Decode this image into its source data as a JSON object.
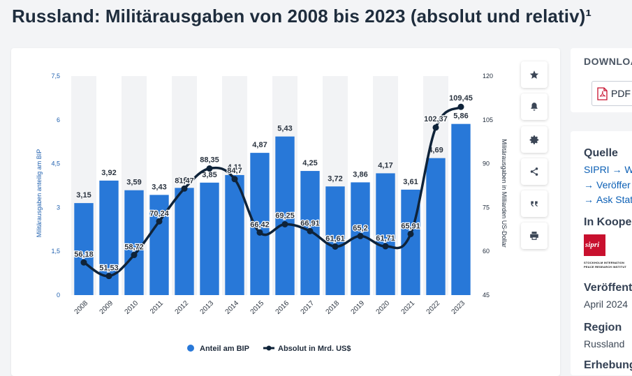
{
  "page": {
    "title": "Russland: Militärausgaben von 2008 bis 2023 (absolut und relativ)¹"
  },
  "chart_data": {
    "type": "bar+line",
    "title": "Russland: Militärausgaben von 2008 bis 2023 (absolut und relativ)¹",
    "categories": [
      "2008",
      "2009",
      "2010",
      "2011",
      "2012",
      "2013",
      "2014",
      "2015",
      "2016",
      "2017",
      "2018",
      "2019",
      "2020",
      "2021",
      "2022",
      "2023"
    ],
    "series": [
      {
        "name": "Anteil am BIP",
        "type": "bar",
        "axis": "left",
        "color": "#2878d8",
        "values": [
          3.15,
          3.92,
          3.59,
          3.43,
          3.67,
          3.85,
          4.11,
          4.87,
          5.43,
          4.25,
          3.72,
          3.86,
          4.17,
          3.61,
          4.69,
          5.86
        ],
        "labels": [
          "3,15",
          "3,92",
          "3,59",
          "3,43",
          "3,67",
          "3,85",
          "4,11",
          "4,87",
          "5,43",
          "4,25",
          "3,72",
          "3,86",
          "4,17",
          "3,61",
          "4,69",
          "5,86"
        ]
      },
      {
        "name": "Absolut in Mrd. US$",
        "type": "line",
        "axis": "right",
        "color": "#0f2339",
        "values": [
          56.18,
          51.53,
          58.72,
          70.24,
          81.47,
          88.35,
          84.7,
          66.42,
          69.25,
          66.91,
          61.61,
          65.2,
          61.71,
          65.91,
          102.37,
          109.45
        ],
        "labels": [
          "56,18",
          "51,53",
          "58,72",
          "70,24",
          "81,47",
          "88,35",
          "84,7",
          "66,42",
          "69,25",
          "66,91",
          "61,61",
          "65,2",
          "61,71",
          "65,91",
          "102,37",
          "109,45"
        ]
      }
    ],
    "y_left": {
      "label": "Militärausgaben anteilig am BIP",
      "range": [
        0,
        7.5
      ],
      "ticks": [
        "0",
        "1,5",
        "3",
        "4,5",
        "6",
        "7,5"
      ]
    },
    "y_right": {
      "label": "Militärausgaben in Milliarden US-Dollar",
      "range": [
        45,
        120
      ],
      "ticks": [
        "45",
        "60",
        "75",
        "90",
        "105",
        "120"
      ]
    },
    "legend": {
      "position": "bottom-center"
    },
    "grid": "alternating vertical bands"
  },
  "toolbar": {
    "buttons": [
      {
        "name": "favorite-button",
        "icon": "star-icon"
      },
      {
        "name": "notification-button",
        "icon": "bell-icon"
      },
      {
        "name": "settings-button",
        "icon": "gear-icon"
      },
      {
        "name": "share-button",
        "icon": "share-icon"
      },
      {
        "name": "cite-button",
        "icon": "quote-icon"
      },
      {
        "name": "print-button",
        "icon": "printer-icon"
      }
    ]
  },
  "download": {
    "heading": "DOWNLOA",
    "pdf_label": "PDF"
  },
  "sidebar": {
    "source": {
      "heading": "Quelle",
      "primary": "SIPRI",
      "primary_link": "We",
      "links": [
        "Veröffer",
        "Ask Stat"
      ]
    },
    "cooperation": {
      "heading": "In Kooper",
      "logo_text": "sipri",
      "logo_line1": "STOCKHOLM INTERNATION",
      "logo_line2": "PEACE RESEARCH INSTITUT"
    },
    "published": {
      "heading": "Veröffent",
      "value": "April 2024"
    },
    "region": {
      "heading": "Region",
      "value": "Russland"
    },
    "survey": {
      "heading": "Erhebungs"
    }
  },
  "colors": {
    "bar": "#2878d8",
    "line": "#0f2339",
    "axis_text": "#1e5fae",
    "band": "#f2f3f5"
  }
}
